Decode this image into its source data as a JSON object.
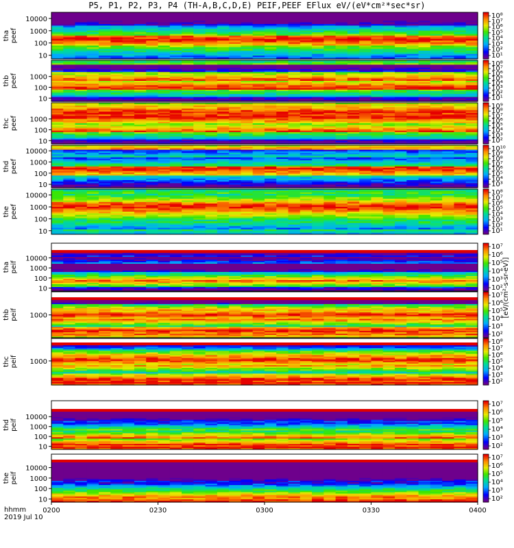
{
  "chart_data": {
    "type": "heatmap",
    "title": "P5, P1, P2, P3, P4 (TH-A,B,C,D,E) PEIF,PEEF EFlux eV/(eV*cm²*sec*sr)",
    "x_ticks": [
      "0200",
      "0230",
      "0300",
      "0330",
      "0400"
    ],
    "x_label": "hhmm",
    "date_label": "2019 Jul 10",
    "cbar_title": "[eV/(cm²-s-sr-eV)]",
    "panels": [
      {
        "name": "tha peef",
        "lines": [
          "tha",
          "peef"
        ],
        "yticks": [
          "10",
          "100",
          "1000",
          "10000"
        ],
        "cbar_ticks": [
          "10⁸",
          "10⁷",
          "10⁶",
          "10⁵",
          "10⁴",
          "10³",
          "10²",
          "10¹"
        ],
        "levels": [
          2.5,
          2.5,
          2.3,
          1.8,
          1.5,
          1.2
        ]
      },
      {
        "name": "thb peef",
        "lines": [
          "thb",
          "peef"
        ],
        "yticks": [
          "10",
          "100",
          "1000"
        ],
        "cbar_ticks": [
          "10⁸",
          "10⁷",
          "10⁶",
          "10⁵",
          "10⁴",
          "10³",
          "10²",
          "10¹"
        ],
        "levels": [
          3.0,
          2.6,
          1.9,
          2.5,
          1.6,
          3.3
        ]
      },
      {
        "name": "thc peef",
        "lines": [
          "thc",
          "peef"
        ],
        "yticks": [
          "10",
          "100",
          "1000"
        ],
        "cbar_ticks": [
          "10⁹",
          "10⁸",
          "10⁷",
          "10⁶",
          "10⁵",
          "10⁴",
          "10³",
          "10²"
        ],
        "levels": [
          3.0,
          2.6,
          1.7,
          3.2,
          3.6,
          3.7
        ]
      },
      {
        "name": "thd peef",
        "lines": [
          "thd",
          "peef"
        ],
        "yticks": [
          "10",
          "100",
          "1000",
          "10000"
        ],
        "cbar_ticks": [
          "10¹⁰",
          "10⁹",
          "10⁸",
          "10⁷",
          "10⁶",
          "10⁵",
          "10⁴",
          "10³"
        ],
        "levels": [
          3.0,
          3.0,
          2.4,
          1.6,
          2.2,
          3.8
        ]
      },
      {
        "name": "the peef",
        "lines": [
          "the",
          "peef"
        ],
        "yticks": [
          "10",
          "100",
          "1000",
          "10000"
        ],
        "cbar_ticks": [
          "10⁸",
          "10⁷",
          "10⁶",
          "10⁵",
          "10⁴",
          "10³",
          "10²",
          "10¹"
        ],
        "levels": [
          2.2,
          2.8,
          3.0,
          3.0,
          2.9,
          3.2
        ]
      },
      {
        "name": "tha peif",
        "lines": [
          "tha",
          "peif"
        ],
        "yticks": [
          "10",
          "100",
          "1000",
          "10000"
        ],
        "cbar_ticks": [
          "10⁷",
          "10⁶",
          "10⁵",
          "10⁴",
          "10³",
          "10²"
        ],
        "levels": [
          2.4,
          1.9,
          1.5,
          1.2,
          2.3,
          2.8
        ]
      },
      {
        "name": "thb peif",
        "lines": [
          "thb",
          "peif"
        ],
        "yticks": [
          "1000"
        ],
        "cbar_ticks": [
          "10⁷",
          "10⁶",
          "10⁵",
          "10⁴",
          "10³",
          "10²"
        ],
        "levels": [
          1.2,
          1.4,
          2.7,
          3.0,
          3.2,
          2.6
        ]
      },
      {
        "name": "thc peif",
        "lines": [
          "thc",
          "peif"
        ],
        "yticks": [
          "1000"
        ],
        "cbar_ticks": [
          "10⁸",
          "10⁷",
          "10⁶",
          "10⁵",
          "10⁴",
          "10³",
          "10²"
        ],
        "levels": [
          0.9,
          1.2,
          2.8,
          3.1,
          3.2,
          3.0
        ]
      },
      {
        "name": "thd peif",
        "lines": [
          "thd",
          "peif"
        ],
        "yticks": [
          "10",
          "100",
          "1000",
          "10000"
        ],
        "cbar_ticks": [
          "10⁷",
          "10⁶",
          "10⁵",
          "10⁴",
          "10³",
          "10²"
        ],
        "levels": [
          0.9,
          1.1,
          1.7,
          2.0,
          2.2,
          2.2
        ]
      },
      {
        "name": "the peif",
        "lines": [
          "the",
          "peif"
        ],
        "yticks": [
          "10",
          "100",
          "1000",
          "10000"
        ],
        "cbar_ticks": [
          "10⁷",
          "10⁶",
          "10⁵",
          "10⁴",
          "10³",
          "10²"
        ],
        "levels": [
          0.8,
          1.0,
          1.1,
          1.3,
          1.6,
          1.8
        ]
      }
    ]
  }
}
